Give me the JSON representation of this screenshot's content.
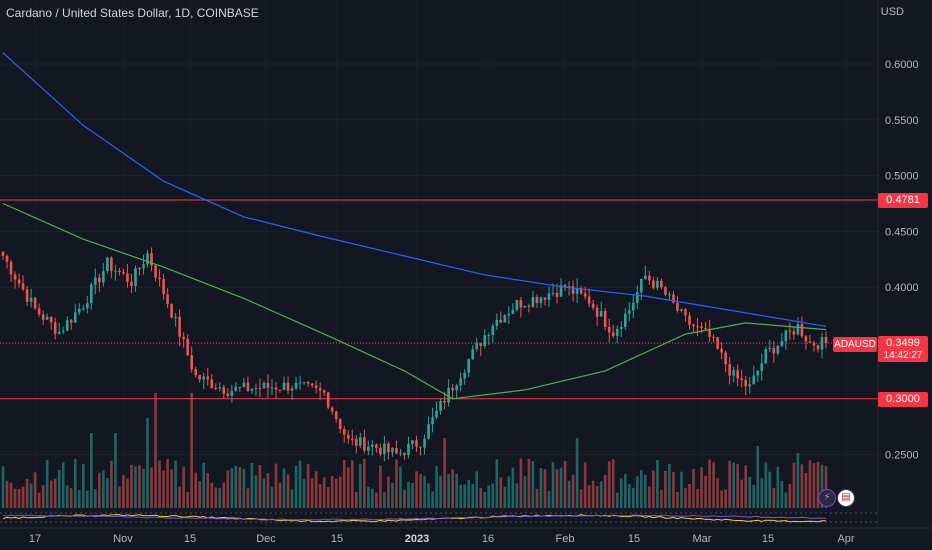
{
  "header": {
    "title": "Cardano / United States Dollar, 1D, COINBASE",
    "currency": "USD"
  },
  "badges": {
    "resistance": "0.4781",
    "support": "0.3000",
    "price": "0.3499",
    "symbol": "ADAUSD",
    "countdown": "14:42:27"
  },
  "colors": {
    "background": "#131722",
    "up": "#26a69a",
    "down": "#ef5350",
    "ma_long": "#2962ff",
    "ma_short": "#4caf50",
    "level_line": "#f23645",
    "text": "#b2b5be"
  },
  "icons": {
    "alert": "lightning-icon",
    "flag": "us-flag-icon"
  },
  "chart_data": {
    "type": "candlestick",
    "y_axis": {
      "ticks": [
        "0.6000",
        "0.5500",
        "0.5000",
        "0.4500",
        "0.4000",
        "0.3500",
        "0.2500"
      ],
      "ylim": [
        0.21,
        0.65
      ]
    },
    "x_axis": {
      "ticks": [
        "17",
        "Nov",
        "15",
        "Dec",
        "15",
        "2023",
        "16",
        "Feb",
        "15",
        "Mar",
        "15",
        "Apr"
      ],
      "bold_tick": "2023"
    },
    "horizontal_levels": [
      0.4781,
      0.3
    ],
    "current_price": 0.3499,
    "key_points_close": [
      [
        0,
        0.428
      ],
      [
        8,
        0.38
      ],
      [
        14,
        0.36
      ],
      [
        20,
        0.385
      ],
      [
        26,
        0.421
      ],
      [
        32,
        0.405
      ],
      [
        36,
        0.43
      ],
      [
        42,
        0.378
      ],
      [
        48,
        0.32
      ],
      [
        56,
        0.308
      ],
      [
        64,
        0.31
      ],
      [
        72,
        0.312
      ],
      [
        80,
        0.305
      ],
      [
        86,
        0.262
      ],
      [
        92,
        0.258
      ],
      [
        98,
        0.25
      ],
      [
        104,
        0.262
      ],
      [
        110,
        0.3
      ],
      [
        116,
        0.335
      ],
      [
        122,
        0.368
      ],
      [
        128,
        0.385
      ],
      [
        134,
        0.392
      ],
      [
        140,
        0.4
      ],
      [
        146,
        0.388
      ],
      [
        152,
        0.36
      ],
      [
        156,
        0.38
      ],
      [
        160,
        0.41
      ],
      [
        164,
        0.398
      ],
      [
        170,
        0.37
      ],
      [
        176,
        0.355
      ],
      [
        182,
        0.32
      ],
      [
        186,
        0.31
      ],
      [
        190,
        0.34
      ],
      [
        194,
        0.352
      ],
      [
        198,
        0.365
      ],
      [
        201,
        0.35
      ],
      [
        205,
        0.3499
      ]
    ],
    "moving_average_long": [
      [
        0,
        0.61
      ],
      [
        20,
        0.545
      ],
      [
        40,
        0.495
      ],
      [
        60,
        0.463
      ],
      [
        80,
        0.445
      ],
      [
        100,
        0.428
      ],
      [
        120,
        0.411
      ],
      [
        140,
        0.4
      ],
      [
        160,
        0.392
      ],
      [
        180,
        0.38
      ],
      [
        205,
        0.365
      ]
    ],
    "moving_average_short": [
      [
        0,
        0.475
      ],
      [
        20,
        0.443
      ],
      [
        40,
        0.418
      ],
      [
        60,
        0.39
      ],
      [
        80,
        0.358
      ],
      [
        100,
        0.325
      ],
      [
        112,
        0.3
      ],
      [
        130,
        0.308
      ],
      [
        150,
        0.325
      ],
      [
        170,
        0.358
      ],
      [
        185,
        0.368
      ],
      [
        205,
        0.362
      ]
    ]
  }
}
